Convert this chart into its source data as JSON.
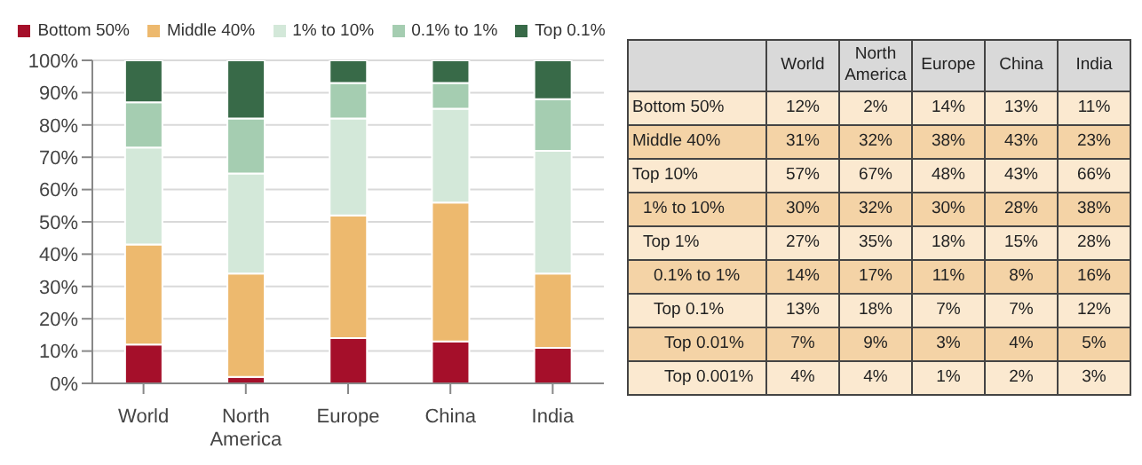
{
  "chart_data": [
    {
      "type": "bar",
      "stacked": true,
      "categories": [
        "World",
        "North America",
        "Europe",
        "China",
        "India"
      ],
      "series": [
        {
          "name": "Bottom 50%",
          "color": "#a50f2a",
          "values": [
            12,
            2,
            14,
            13,
            11
          ]
        },
        {
          "name": "Middle 40%",
          "color": "#edb96e",
          "values": [
            31,
            32,
            38,
            43,
            23
          ]
        },
        {
          "name": "1% to 10%",
          "color": "#d3e8d9",
          "values": [
            30,
            31,
            30,
            29,
            38
          ]
        },
        {
          "name": "0.1% to 1%",
          "color": "#a5cdb1",
          "values": [
            14,
            17,
            11,
            8,
            16
          ]
        },
        {
          "name": "Top 0.1%",
          "color": "#386a48",
          "values": [
            13,
            18,
            7,
            7,
            12
          ]
        }
      ],
      "ylim": [
        0,
        100
      ],
      "yticks": [
        {
          "value": 0,
          "label": "0%"
        },
        {
          "value": 10,
          "label": "10%"
        },
        {
          "value": 20,
          "label": "20%"
        },
        {
          "value": 30,
          "label": "30%"
        },
        {
          "value": 40,
          "label": "40%"
        },
        {
          "value": 50,
          "label": "50%"
        },
        {
          "value": 60,
          "label": "60%"
        },
        {
          "value": 70,
          "label": "70%"
        },
        {
          "value": 80,
          "label": "80%"
        },
        {
          "value": 90,
          "label": "90%"
        },
        {
          "value": 100,
          "label": "100%"
        }
      ],
      "grid": "y",
      "legend": "top"
    },
    {
      "type": "other",
      "categories": [
        "World",
        "North America",
        "Europe",
        "China",
        "India"
      ],
      "y_categories": [
        "Bottom 50%",
        "Middle 40%",
        "Top 10%",
        "1% to 10%",
        "Top 1%",
        "0.1% to 1%",
        "Top 0.1%",
        "Top 0.01%",
        "Top 0.001%"
      ],
      "cell_labels": [
        [
          "12%",
          "2%",
          "14%",
          "13%",
          "11%"
        ],
        [
          "31%",
          "32%",
          "38%",
          "43%",
          "23%"
        ],
        [
          "57%",
          "67%",
          "48%",
          "43%",
          "66%"
        ],
        [
          "30%",
          "32%",
          "30%",
          "28%",
          "38%"
        ],
        [
          "27%",
          "35%",
          "18%",
          "15%",
          "28%"
        ],
        [
          "14%",
          "17%",
          "11%",
          "8%",
          "16%"
        ],
        [
          "13%",
          "18%",
          "7%",
          "7%",
          "12%"
        ],
        [
          "7%",
          "9%",
          "3%",
          "4%",
          "5%"
        ],
        [
          "4%",
          "4%",
          "1%",
          "2%",
          "3%"
        ]
      ]
    }
  ]
}
